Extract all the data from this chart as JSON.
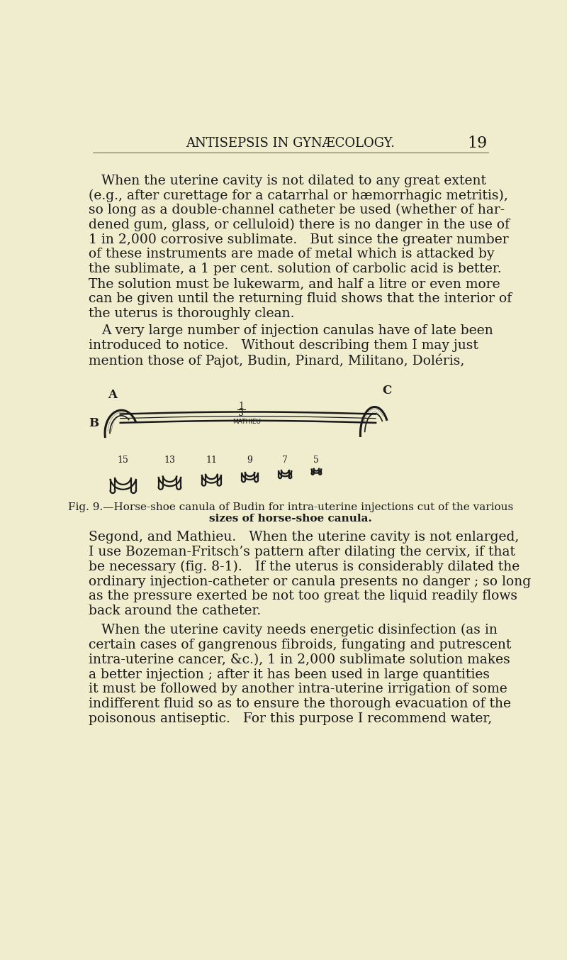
{
  "background_color": "#f0edcf",
  "page_number": "19",
  "header_text": "ANTISEPSIS IN GYNÆCOLOGY.",
  "text_color": "#1a1a1a",
  "body_font_size": 13.5,
  "header_font_size": 13,
  "paragraph1": "When the uterine cavity is not dilated to any great extent\n(e.g., after curettage for a catarrhal or hæmorrhagic metritis),\nso long as a double-channel catheter be used (whether of har-\ndened gum, glass, or celluloid) there is no danger in the use of\n1 in 2,000 corrosive sublimate.   But since the greater number\nof these instruments are made of metal which is attacked by\nthe sublimate, a 1 per cent. solution of carbolic acid is better.\nThe solution must be lukewarm, and half a litre or even more\ncan be given until the returning fluid shows that the interior of\nthe uterus is thoroughly clean.",
  "paragraph2": "A very large number of injection canulas have of late been\nintroduced to notice.   Without describing them I may just\nmention those of Pajot, Budin, Pinard, Militano, Doléris,",
  "fig_caption_line1": "Fig. 9.—Horse-shoe canula of Budin for intra-uterine injections cut of the various",
  "fig_caption_line2": "sizes of horse-shoe canula.",
  "paragraph3": "Segond, and Mathieu.   When the uterine cavity is not enlarged,\nI use Bozeman-Fritsch’s pattern after dilating the cervix, if that\nbe necessary (fig. 8-1).   If the uterus is considerably dilated the\nordinary injection-catheter or canula presents no danger ; so long\nas the pressure exerted be not too great the liquid readily flows\nback around the catheter.",
  "paragraph4": "When the uterine cavity needs energetic disinfection (as in\ncertain cases of gangrenous fibroids, fungating and putrescent\nintra-uterine cancer, &c.), 1 in 2,000 sublimate solution makes\na better injection ; after it has been used in large quantities\nit must be followed by another intra-uterine irrigation of some\nindifferent fluid so as to ensure the thorough evacuation of the\npoisonous antiseptic.   For this purpose I recommend water,",
  "horseshoe_labels": [
    "15",
    "13",
    "11",
    "9",
    "7",
    "5"
  ],
  "canula_label_A": "A",
  "canula_label_B": "B",
  "canula_label_C": "C",
  "canula_frac_num": "1",
  "canula_frac_den": "3",
  "canula_maker": "MATHIEU"
}
